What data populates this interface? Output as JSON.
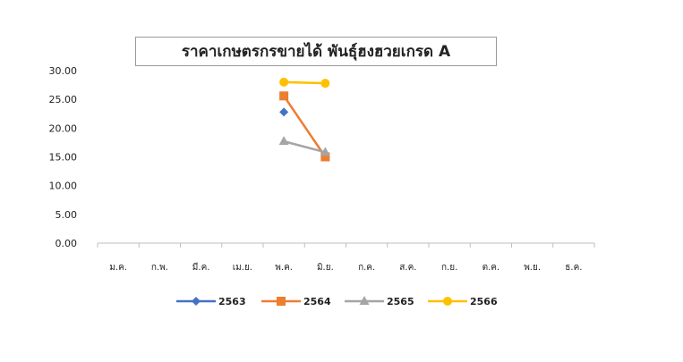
{
  "chart_data": {
    "type": "line",
    "title": "ราคาเกษตรกรขายได้ พันธุ์ฮงฮวยเกรด A",
    "xlabel": "",
    "ylabel": "",
    "categories": [
      "ม.ค.",
      "ก.พ.",
      "มี.ค.",
      "เม.ย.",
      "พ.ค.",
      "มิ.ย.",
      "ก.ค.",
      "ส.ค.",
      "ก.ย.",
      "ต.ค.",
      "พ.ย.",
      "ธ.ค."
    ],
    "ylim": [
      0,
      30
    ],
    "yticks": [
      "0.00",
      "5.00",
      "10.00",
      "15.00",
      "20.00",
      "25.00",
      "30.00"
    ],
    "grid": false,
    "legend": "bottom",
    "series": [
      {
        "name": "2563",
        "color": "#4472C4",
        "marker": "diamond",
        "values": [
          null,
          null,
          null,
          null,
          22.8,
          null,
          null,
          null,
          null,
          null,
          null,
          null
        ]
      },
      {
        "name": "2564",
        "color": "#ED7D31",
        "marker": "square",
        "values": [
          null,
          null,
          null,
          null,
          25.6,
          15.0,
          null,
          null,
          null,
          null,
          null,
          null
        ]
      },
      {
        "name": "2565",
        "color": "#A5A5A5",
        "marker": "triangle",
        "values": [
          null,
          null,
          null,
          null,
          17.7,
          15.8,
          null,
          null,
          null,
          null,
          null,
          null
        ]
      },
      {
        "name": "2566",
        "color": "#FFC000",
        "marker": "circle",
        "values": [
          null,
          null,
          null,
          null,
          28.0,
          27.8,
          null,
          null,
          null,
          null,
          null,
          null
        ]
      }
    ]
  }
}
